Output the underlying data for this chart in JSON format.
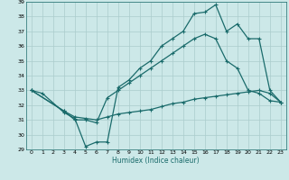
{
  "xlabel": "Humidex (Indice chaleur)",
  "bg_color": "#cce8e8",
  "grid_color": "#aacccc",
  "line_color": "#1a6b6b",
  "xlim": [
    -0.5,
    23.5
  ],
  "ylim": [
    29,
    39
  ],
  "yticks": [
    29,
    30,
    31,
    32,
    33,
    34,
    35,
    36,
    37,
    38,
    39
  ],
  "xticks": [
    0,
    1,
    2,
    3,
    4,
    5,
    6,
    7,
    8,
    9,
    10,
    11,
    12,
    13,
    14,
    15,
    16,
    17,
    18,
    19,
    20,
    21,
    22,
    23
  ],
  "line1_x": [
    0,
    1,
    3,
    4,
    5,
    6,
    7,
    8,
    9,
    10,
    11,
    12,
    13,
    14,
    15,
    16,
    17,
    18,
    19,
    20,
    21,
    22,
    23
  ],
  "line1_y": [
    33,
    32.8,
    31.5,
    31.1,
    29.2,
    29.5,
    29.5,
    33.2,
    33.7,
    34.5,
    35.0,
    36.0,
    36.5,
    37.0,
    38.2,
    38.3,
    38.8,
    37.0,
    37.5,
    36.5,
    36.5,
    33.0,
    32.2
  ],
  "line2_x": [
    0,
    3,
    4,
    5,
    6,
    7,
    8,
    9,
    10,
    11,
    12,
    13,
    14,
    15,
    16,
    17,
    18,
    19,
    20,
    21,
    22,
    23
  ],
  "line2_y": [
    33,
    31.6,
    31.0,
    31.0,
    30.8,
    32.5,
    33.0,
    33.5,
    34.0,
    34.5,
    35.0,
    35.5,
    36.0,
    36.5,
    36.8,
    36.5,
    35.0,
    34.5,
    33.0,
    32.8,
    32.3,
    32.2
  ],
  "line3_x": [
    0,
    3,
    4,
    5,
    6,
    7,
    8,
    9,
    10,
    11,
    12,
    13,
    14,
    15,
    16,
    17,
    18,
    19,
    20,
    21,
    22,
    23
  ],
  "line3_y": [
    33,
    31.6,
    31.2,
    31.1,
    31.0,
    31.2,
    31.4,
    31.5,
    31.6,
    31.7,
    31.9,
    32.1,
    32.2,
    32.4,
    32.5,
    32.6,
    32.7,
    32.8,
    32.9,
    33.0,
    32.8,
    32.2
  ]
}
